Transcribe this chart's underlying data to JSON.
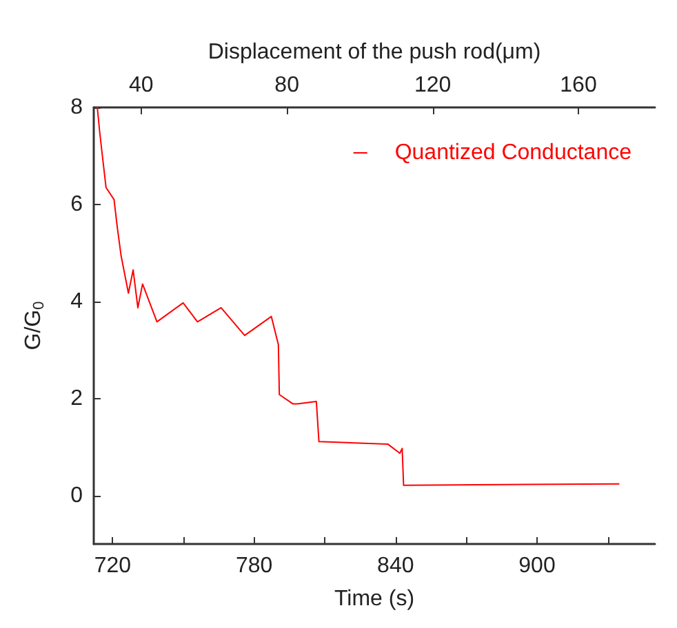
{
  "chart_data": {
    "type": "line",
    "xlabel": "Time (s)",
    "ylabel": "G/G$_{0}$",
    "x2label": "Displacement of the push rod(μm)",
    "xlim": [
      712,
      950
    ],
    "xticks": [
      720,
      {
        "value": 750,
        "label": null
      },
      780,
      {
        "value": 810,
        "label": null
      },
      840,
      {
        "value": 870,
        "label": null
      },
      900,
      {
        "value": 930,
        "label": null
      }
    ],
    "x2lim": [
      27,
      181
    ],
    "x2ticks": [
      40,
      80,
      120,
      160
    ],
    "ylim": [
      -1,
      8
    ],
    "yticks": [
      0,
      2,
      4,
      6,
      8
    ],
    "grid": false,
    "legend": "top right",
    "marker": "none",
    "line_style": "solid",
    "series": [
      {
        "name": "Quantized Conductance",
        "color": "#ff0000",
        "x": [
          713.5,
          714.5,
          715.5,
          717.2,
          720.6,
          722,
          723.6,
          726.7,
          728.7,
          730.7,
          732.7,
          738.8,
          749.9,
          756,
          766,
          776,
          787.3,
          790.3,
          790.7,
          796.4,
          798.4,
          806.4,
          807.5,
          836.7,
          841.8,
          842.8,
          843.4,
          934.7
        ],
        "values": [
          8,
          7.5,
          7.07,
          6.35,
          6.1,
          5.52,
          4.94,
          4.17,
          4.65,
          3.87,
          4.36,
          3.58,
          3.97,
          3.58,
          3.87,
          3.3,
          3.69,
          3.11,
          2.08,
          1.89,
          1.89,
          1.94,
          1.11,
          1.06,
          0.87,
          0.97,
          0.21,
          0.24
        ]
      }
    ]
  }
}
